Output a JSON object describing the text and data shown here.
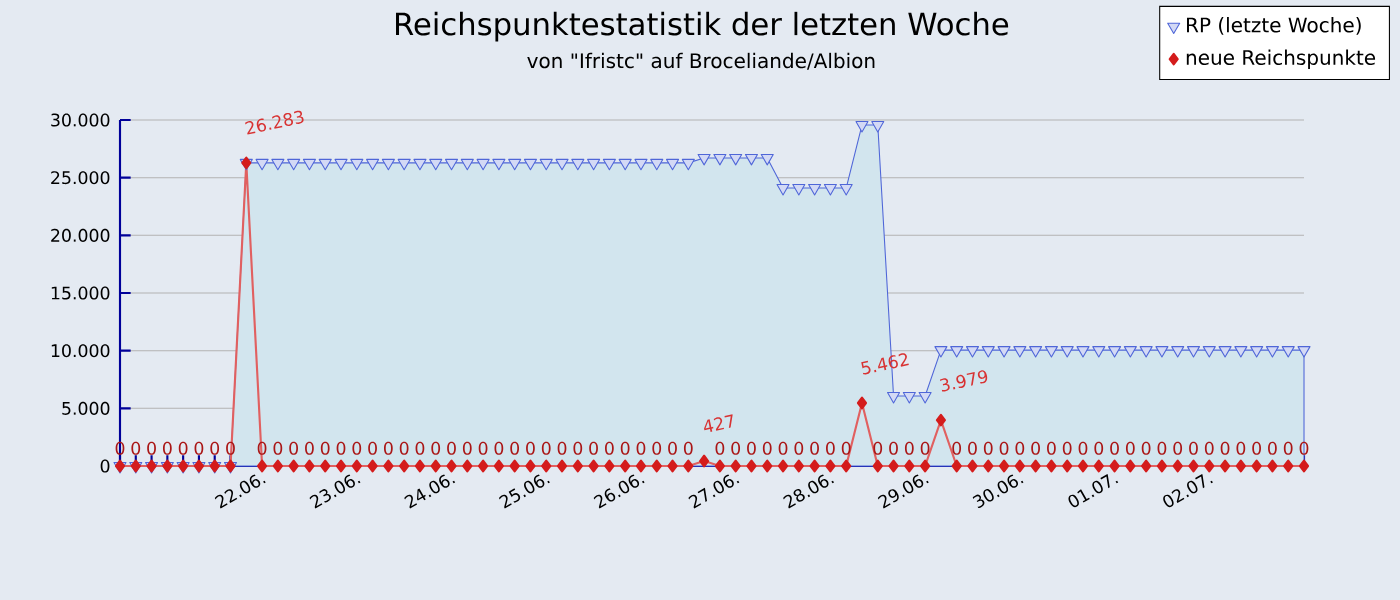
{
  "chart_data": {
    "type": "line",
    "title": "Reichspunktestatistik der letzten Woche",
    "subtitle": "von \"Ifristc\" auf Broceliande/Albion",
    "categories": [
      null,
      null,
      null,
      null,
      null,
      null,
      null,
      null,
      null,
      "22.06.",
      null,
      null,
      null,
      null,
      null,
      "23.06.",
      null,
      null,
      null,
      null,
      null,
      "24.06.",
      null,
      null,
      null,
      null,
      null,
      "25.06.",
      null,
      null,
      null,
      null,
      null,
      "26.06.",
      null,
      null,
      null,
      null,
      null,
      "27.06.",
      null,
      null,
      null,
      null,
      null,
      "28.06.",
      null,
      null,
      null,
      null,
      null,
      "29.06.",
      null,
      null,
      null,
      null,
      null,
      "30.06.",
      null,
      null,
      null,
      null,
      null,
      "01.07.",
      null,
      null,
      null,
      null,
      null,
      "02.07.",
      null,
      null,
      null,
      null,
      null,
      null
    ],
    "series": [
      {
        "name": "RP (letzte Woche)",
        "type": "area",
        "color": "#4f66d8",
        "marker": "triangle",
        "values": [
          0,
          0,
          0,
          0,
          0,
          0,
          0,
          0,
          26283,
          26283,
          26283,
          26283,
          26283,
          26283,
          26283,
          26283,
          26283,
          26283,
          26283,
          26283,
          26283,
          26283,
          26283,
          26283,
          26283,
          26283,
          26283,
          26283,
          26283,
          26283,
          26283,
          26283,
          26283,
          26283,
          26283,
          26283,
          26283,
          26710,
          26710,
          26710,
          26710,
          26710,
          24100,
          24100,
          24100,
          24100,
          24100,
          29562,
          29562,
          6070,
          6070,
          6070,
          10049,
          10049,
          10049,
          10049,
          10049,
          10049,
          10049,
          10049,
          10049,
          10049,
          10049,
          10049,
          10049,
          10049,
          10049,
          10049,
          10049,
          10049,
          10049,
          10049,
          10049,
          10049,
          10049,
          10049
        ]
      },
      {
        "name": "neue Reichspunkte",
        "color": "#d41c1c",
        "marker": "diamond",
        "values": [
          0,
          0,
          0,
          0,
          0,
          0,
          0,
          0,
          26283,
          0,
          0,
          0,
          0,
          0,
          0,
          0,
          0,
          0,
          0,
          0,
          0,
          0,
          0,
          0,
          0,
          0,
          0,
          0,
          0,
          0,
          0,
          0,
          0,
          0,
          0,
          0,
          0,
          427,
          0,
          0,
          0,
          0,
          0,
          0,
          0,
          0,
          0,
          5462,
          0,
          0,
          0,
          0,
          3979,
          0,
          0,
          0,
          0,
          0,
          0,
          0,
          0,
          0,
          0,
          0,
          0,
          0,
          0,
          0,
          0,
          0,
          0,
          0,
          0,
          0,
          0,
          0
        ],
        "value_labels": [
          "0",
          "0",
          "0",
          "0",
          "0",
          "0",
          "0",
          "0",
          "26.283",
          "0",
          "0",
          "0",
          "0",
          "0",
          "0",
          "0",
          "0",
          "0",
          "0",
          "0",
          "0",
          "0",
          "0",
          "0",
          "0",
          "0",
          "0",
          "0",
          "0",
          "0",
          "0",
          "0",
          "0",
          "0",
          "0",
          "0",
          "0",
          "427",
          "0",
          "0",
          "0",
          "0",
          "0",
          "0",
          "0",
          "0",
          "0",
          "5.462",
          "0",
          "0",
          "0",
          "0",
          "3.979",
          "0",
          "0",
          "0",
          "0",
          "0",
          "0",
          "0",
          "0",
          "0",
          "0",
          "0",
          "0",
          "0",
          "0",
          "0",
          "0",
          "0",
          "0",
          "0",
          "0",
          "0",
          "0",
          "0"
        ]
      }
    ],
    "ylim": [
      0,
      30000
    ],
    "yticks": [
      {
        "value": 0,
        "label": "0"
      },
      {
        "value": 5000,
        "label": "5.000"
      },
      {
        "value": 10000,
        "label": "10.000"
      },
      {
        "value": 15000,
        "label": "15.000"
      },
      {
        "value": 20000,
        "label": "20.000"
      },
      {
        "value": 25000,
        "label": "25.000"
      },
      {
        "value": 30000,
        "label": "30.000"
      }
    ],
    "grid": "y",
    "legend": "top right"
  }
}
